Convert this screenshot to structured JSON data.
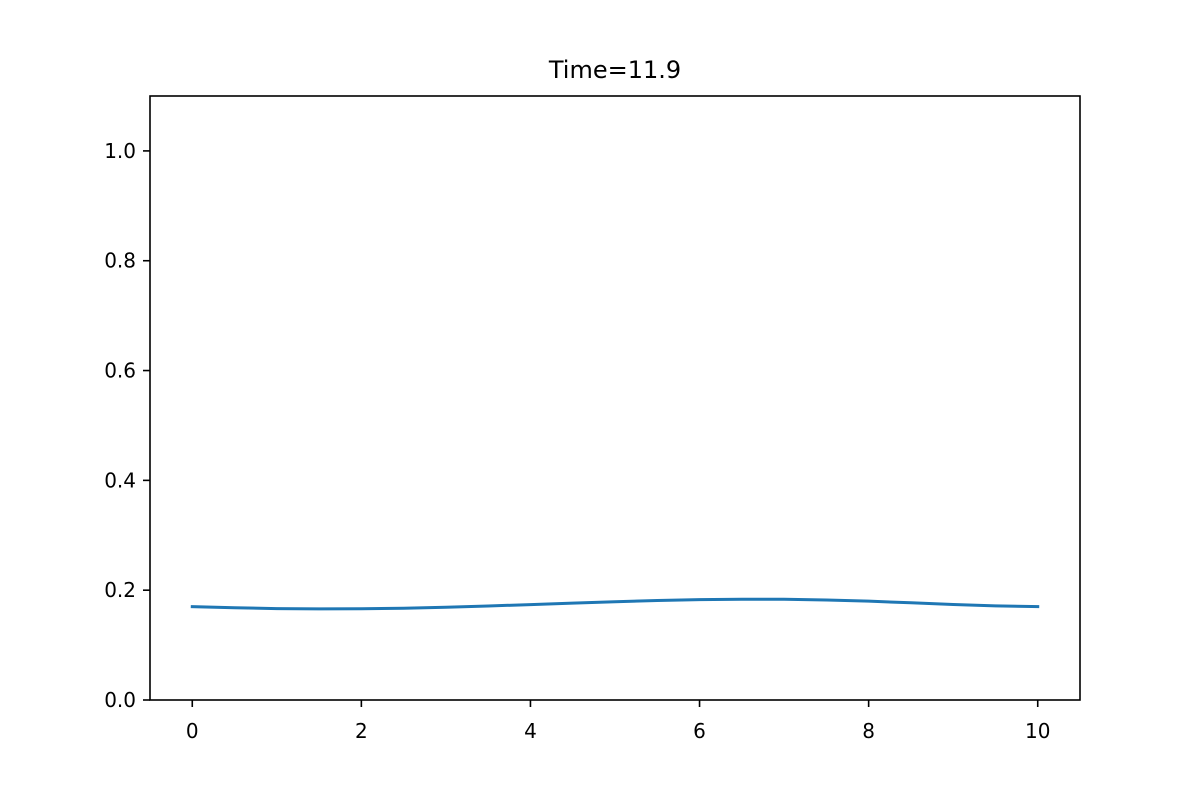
{
  "chart_data": {
    "type": "line",
    "title": "Time=11.9",
    "xlabel": "",
    "ylabel": "",
    "xlim": [
      -0.5,
      10.5
    ],
    "ylim": [
      0.0,
      1.1
    ],
    "x_ticks": [
      0,
      2,
      4,
      6,
      8,
      10
    ],
    "x_tick_labels": [
      "0",
      "2",
      "4",
      "6",
      "8",
      "10"
    ],
    "y_ticks": [
      0.0,
      0.2,
      0.4,
      0.6,
      0.8,
      1.0
    ],
    "y_tick_labels": [
      "0.0",
      "0.2",
      "0.4",
      "0.6",
      "0.8",
      "1.0"
    ],
    "grid": false,
    "legend": "none",
    "series": [
      {
        "color": "#1f77b4",
        "x": [
          0,
          0.5,
          1,
          1.5,
          2,
          2.5,
          3,
          3.5,
          4,
          4.5,
          5,
          5.5,
          6,
          6.5,
          7,
          7.5,
          8,
          8.5,
          9,
          9.5,
          10
        ],
        "y": [
          0.17,
          0.168,
          0.1665,
          0.166,
          0.1662,
          0.1672,
          0.169,
          0.1712,
          0.1738,
          0.1764,
          0.179,
          0.1812,
          0.1828,
          0.1836,
          0.1834,
          0.1822,
          0.18,
          0.177,
          0.174,
          0.1715,
          0.17
        ]
      }
    ]
  }
}
